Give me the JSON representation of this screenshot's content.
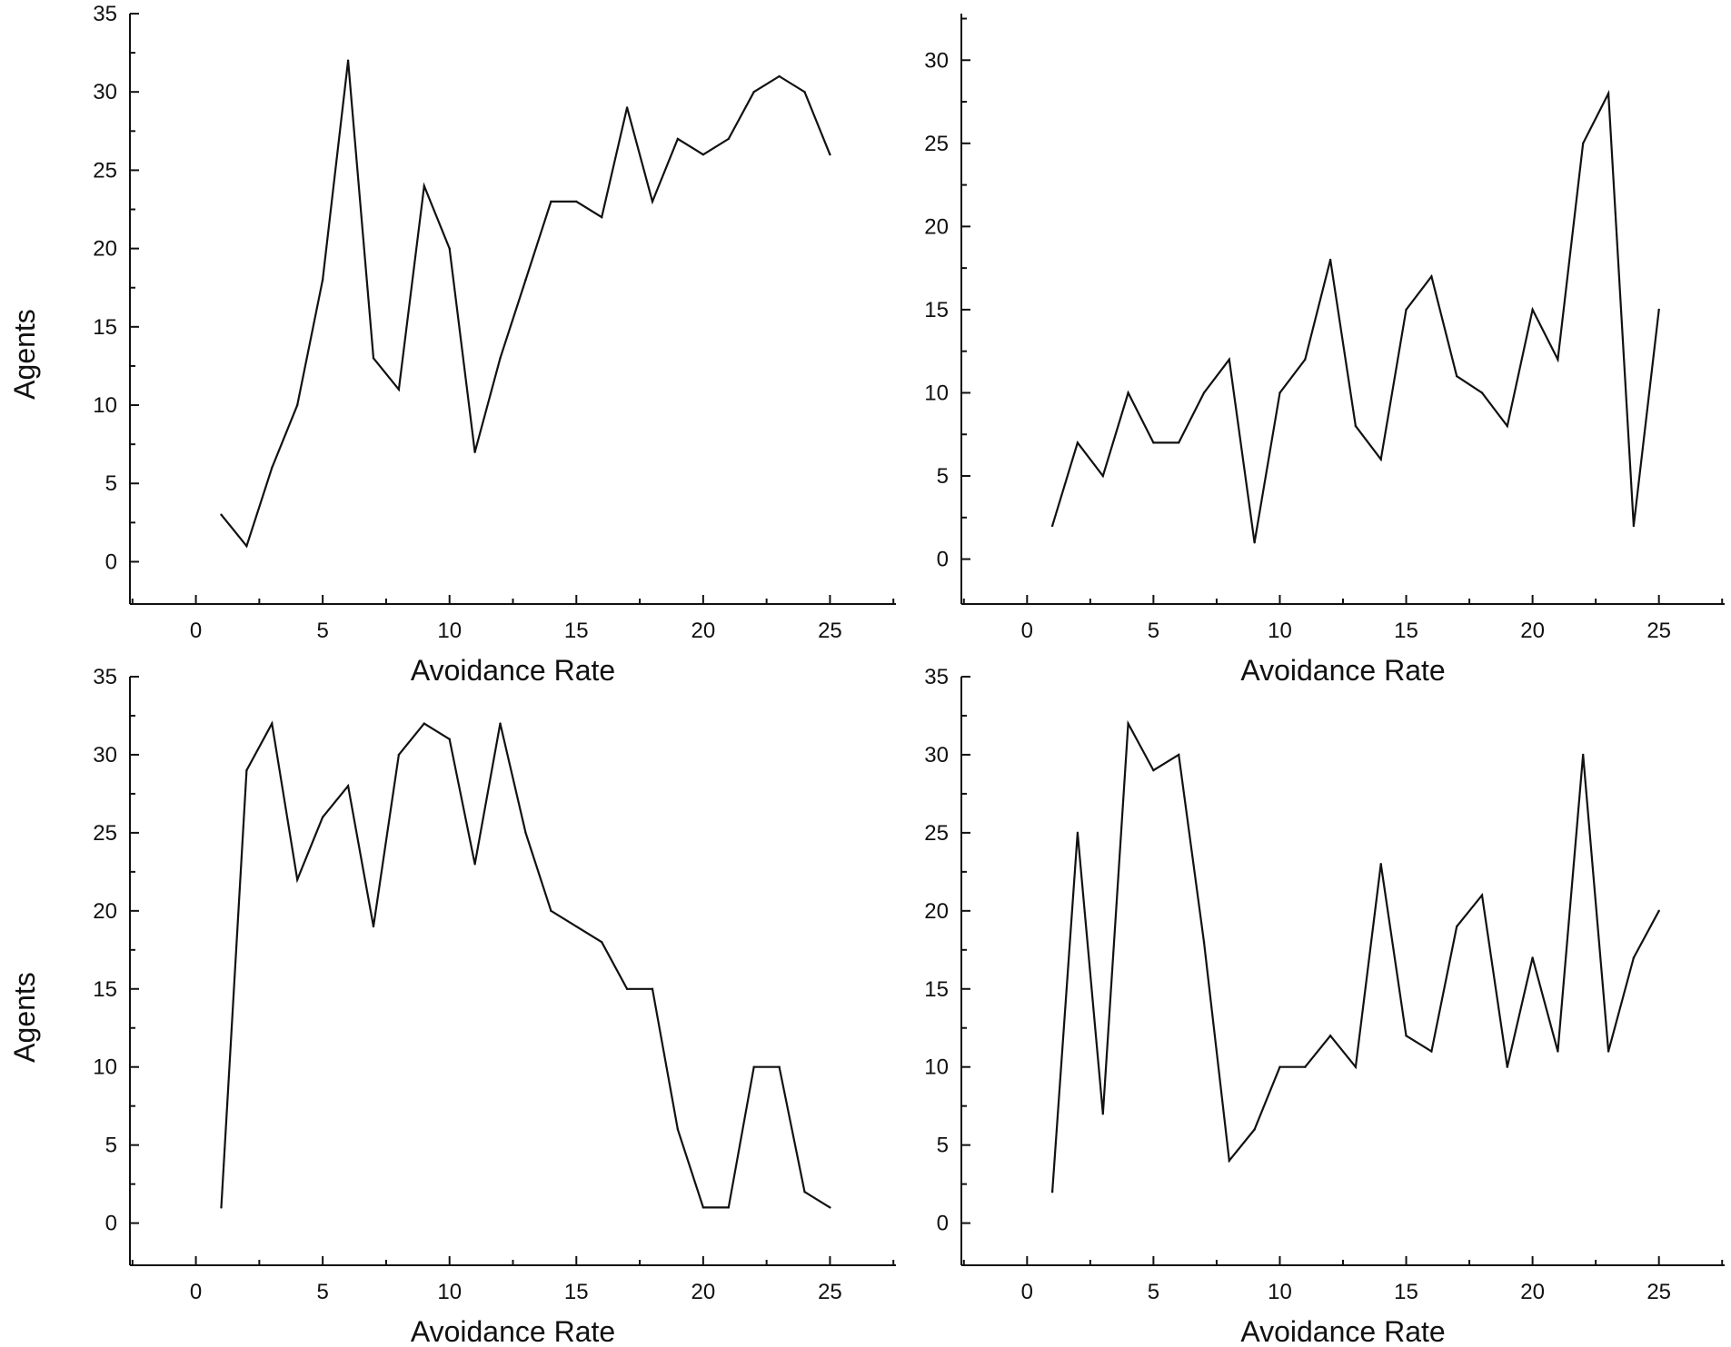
{
  "colors": {
    "line": "#111111",
    "axis": "#111111",
    "background": "#ffffff"
  },
  "chart_data": [
    {
      "type": "line",
      "xlabel": "Avoidance Rate",
      "ylabel": "Agents",
      "xlim": [
        -2.6,
        27.6
      ],
      "ylim": [
        -2.7,
        35
      ],
      "xticks": [
        0,
        5,
        10,
        15,
        20,
        25
      ],
      "yticks": [
        0,
        5,
        10,
        15,
        20,
        25,
        30,
        35
      ],
      "x": [
        1,
        2,
        3,
        4,
        5,
        6,
        7,
        8,
        9,
        10,
        11,
        12,
        13,
        14,
        15,
        16,
        17,
        18,
        19,
        20,
        21,
        22,
        23,
        24,
        25
      ],
      "values": [
        3,
        1,
        6,
        10,
        18,
        32,
        13,
        11,
        24,
        20,
        7,
        13,
        18,
        23,
        23,
        22,
        29,
        23,
        27,
        26,
        27,
        30,
        31,
        30,
        26
      ]
    },
    {
      "type": "line",
      "xlabel": "Avoidance Rate",
      "ylabel": "",
      "xlim": [
        -2.6,
        27.6
      ],
      "ylim": [
        -2.7,
        32.8
      ],
      "xticks": [
        0,
        5,
        10,
        15,
        20,
        25
      ],
      "yticks": [
        0,
        5,
        10,
        15,
        20,
        25,
        30
      ],
      "x": [
        1,
        2,
        3,
        4,
        5,
        6,
        7,
        8,
        9,
        10,
        11,
        12,
        13,
        14,
        15,
        16,
        17,
        18,
        19,
        20,
        21,
        22,
        23,
        24,
        25
      ],
      "values": [
        2,
        7,
        5,
        10,
        7,
        7,
        10,
        12,
        1,
        10,
        12,
        18,
        8,
        6,
        15,
        17,
        11,
        10,
        8,
        15,
        12,
        25,
        28,
        2,
        15
      ]
    },
    {
      "type": "line",
      "xlabel": "Avoidance Rate",
      "ylabel": "Agents",
      "xlim": [
        -2.6,
        27.6
      ],
      "ylim": [
        -2.7,
        35
      ],
      "xticks": [
        0,
        5,
        10,
        15,
        20,
        25
      ],
      "yticks": [
        0,
        5,
        10,
        15,
        20,
        25,
        30,
        35
      ],
      "x": [
        1,
        2,
        3,
        4,
        5,
        6,
        7,
        8,
        9,
        10,
        11,
        12,
        13,
        14,
        15,
        16,
        17,
        18,
        19,
        20,
        21,
        22,
        23,
        24,
        25
      ],
      "values": [
        1,
        29,
        32,
        22,
        26,
        28,
        19,
        30,
        32,
        31,
        23,
        32,
        25,
        20,
        19,
        18,
        15,
        15,
        6,
        1,
        1,
        10,
        10,
        2,
        1
      ]
    },
    {
      "type": "line",
      "xlabel": "Avoidance Rate",
      "ylabel": "",
      "xlim": [
        -2.6,
        27.6
      ],
      "ylim": [
        -2.7,
        35
      ],
      "xticks": [
        0,
        5,
        10,
        15,
        20,
        25
      ],
      "yticks": [
        0,
        5,
        10,
        15,
        20,
        25,
        30,
        35
      ],
      "x": [
        1,
        2,
        3,
        4,
        5,
        6,
        7,
        8,
        9,
        10,
        11,
        12,
        13,
        14,
        15,
        16,
        17,
        18,
        19,
        20,
        21,
        22,
        23,
        24,
        25
      ],
      "values": [
        2,
        25,
        7,
        32,
        29,
        30,
        18,
        4,
        6,
        10,
        10,
        12,
        10,
        23,
        12,
        11,
        19,
        21,
        10,
        17,
        11,
        30,
        11,
        17,
        20
      ]
    }
  ]
}
